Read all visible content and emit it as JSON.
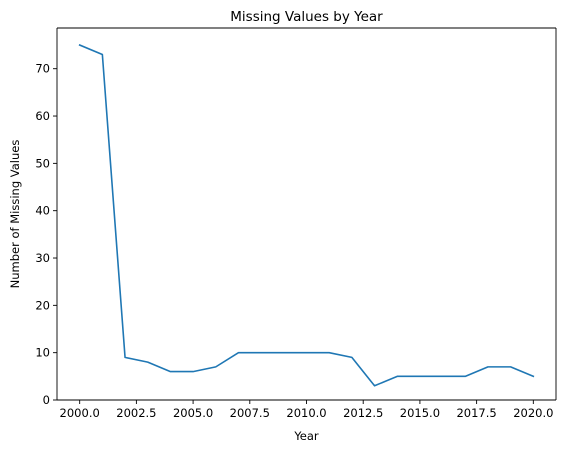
{
  "chart_data": {
    "type": "line",
    "title": "Missing Values by Year",
    "xlabel": "Year",
    "ylabel": "Number of Missing Values",
    "xlim": [
      1999,
      2021
    ],
    "ylim": [
      0,
      78.6
    ],
    "xticks": [
      2000.0,
      2002.5,
      2005.0,
      2007.5,
      2010.0,
      2012.5,
      2015.0,
      2017.5,
      2020.0
    ],
    "xtick_labels": [
      "2000.0",
      "2002.5",
      "2005.0",
      "2007.5",
      "2010.0",
      "2012.5",
      "2015.0",
      "2017.5",
      "2020.0"
    ],
    "yticks": [
      0,
      10,
      20,
      30,
      40,
      50,
      60,
      70
    ],
    "ytick_labels": [
      "0",
      "10",
      "20",
      "30",
      "40",
      "50",
      "60",
      "70"
    ],
    "grid": false,
    "series": [
      {
        "color": "#1f77b4",
        "x": [
          2000,
          2001,
          2002,
          2003,
          2004,
          2005,
          2006,
          2007,
          2008,
          2009,
          2010,
          2011,
          2012,
          2013,
          2014,
          2015,
          2016,
          2017,
          2018,
          2019,
          2020
        ],
        "y": [
          75,
          73,
          9,
          8,
          6,
          6,
          7,
          10,
          10,
          10,
          10,
          10,
          9,
          3,
          5,
          5,
          5,
          5,
          7,
          7,
          5
        ]
      }
    ]
  }
}
